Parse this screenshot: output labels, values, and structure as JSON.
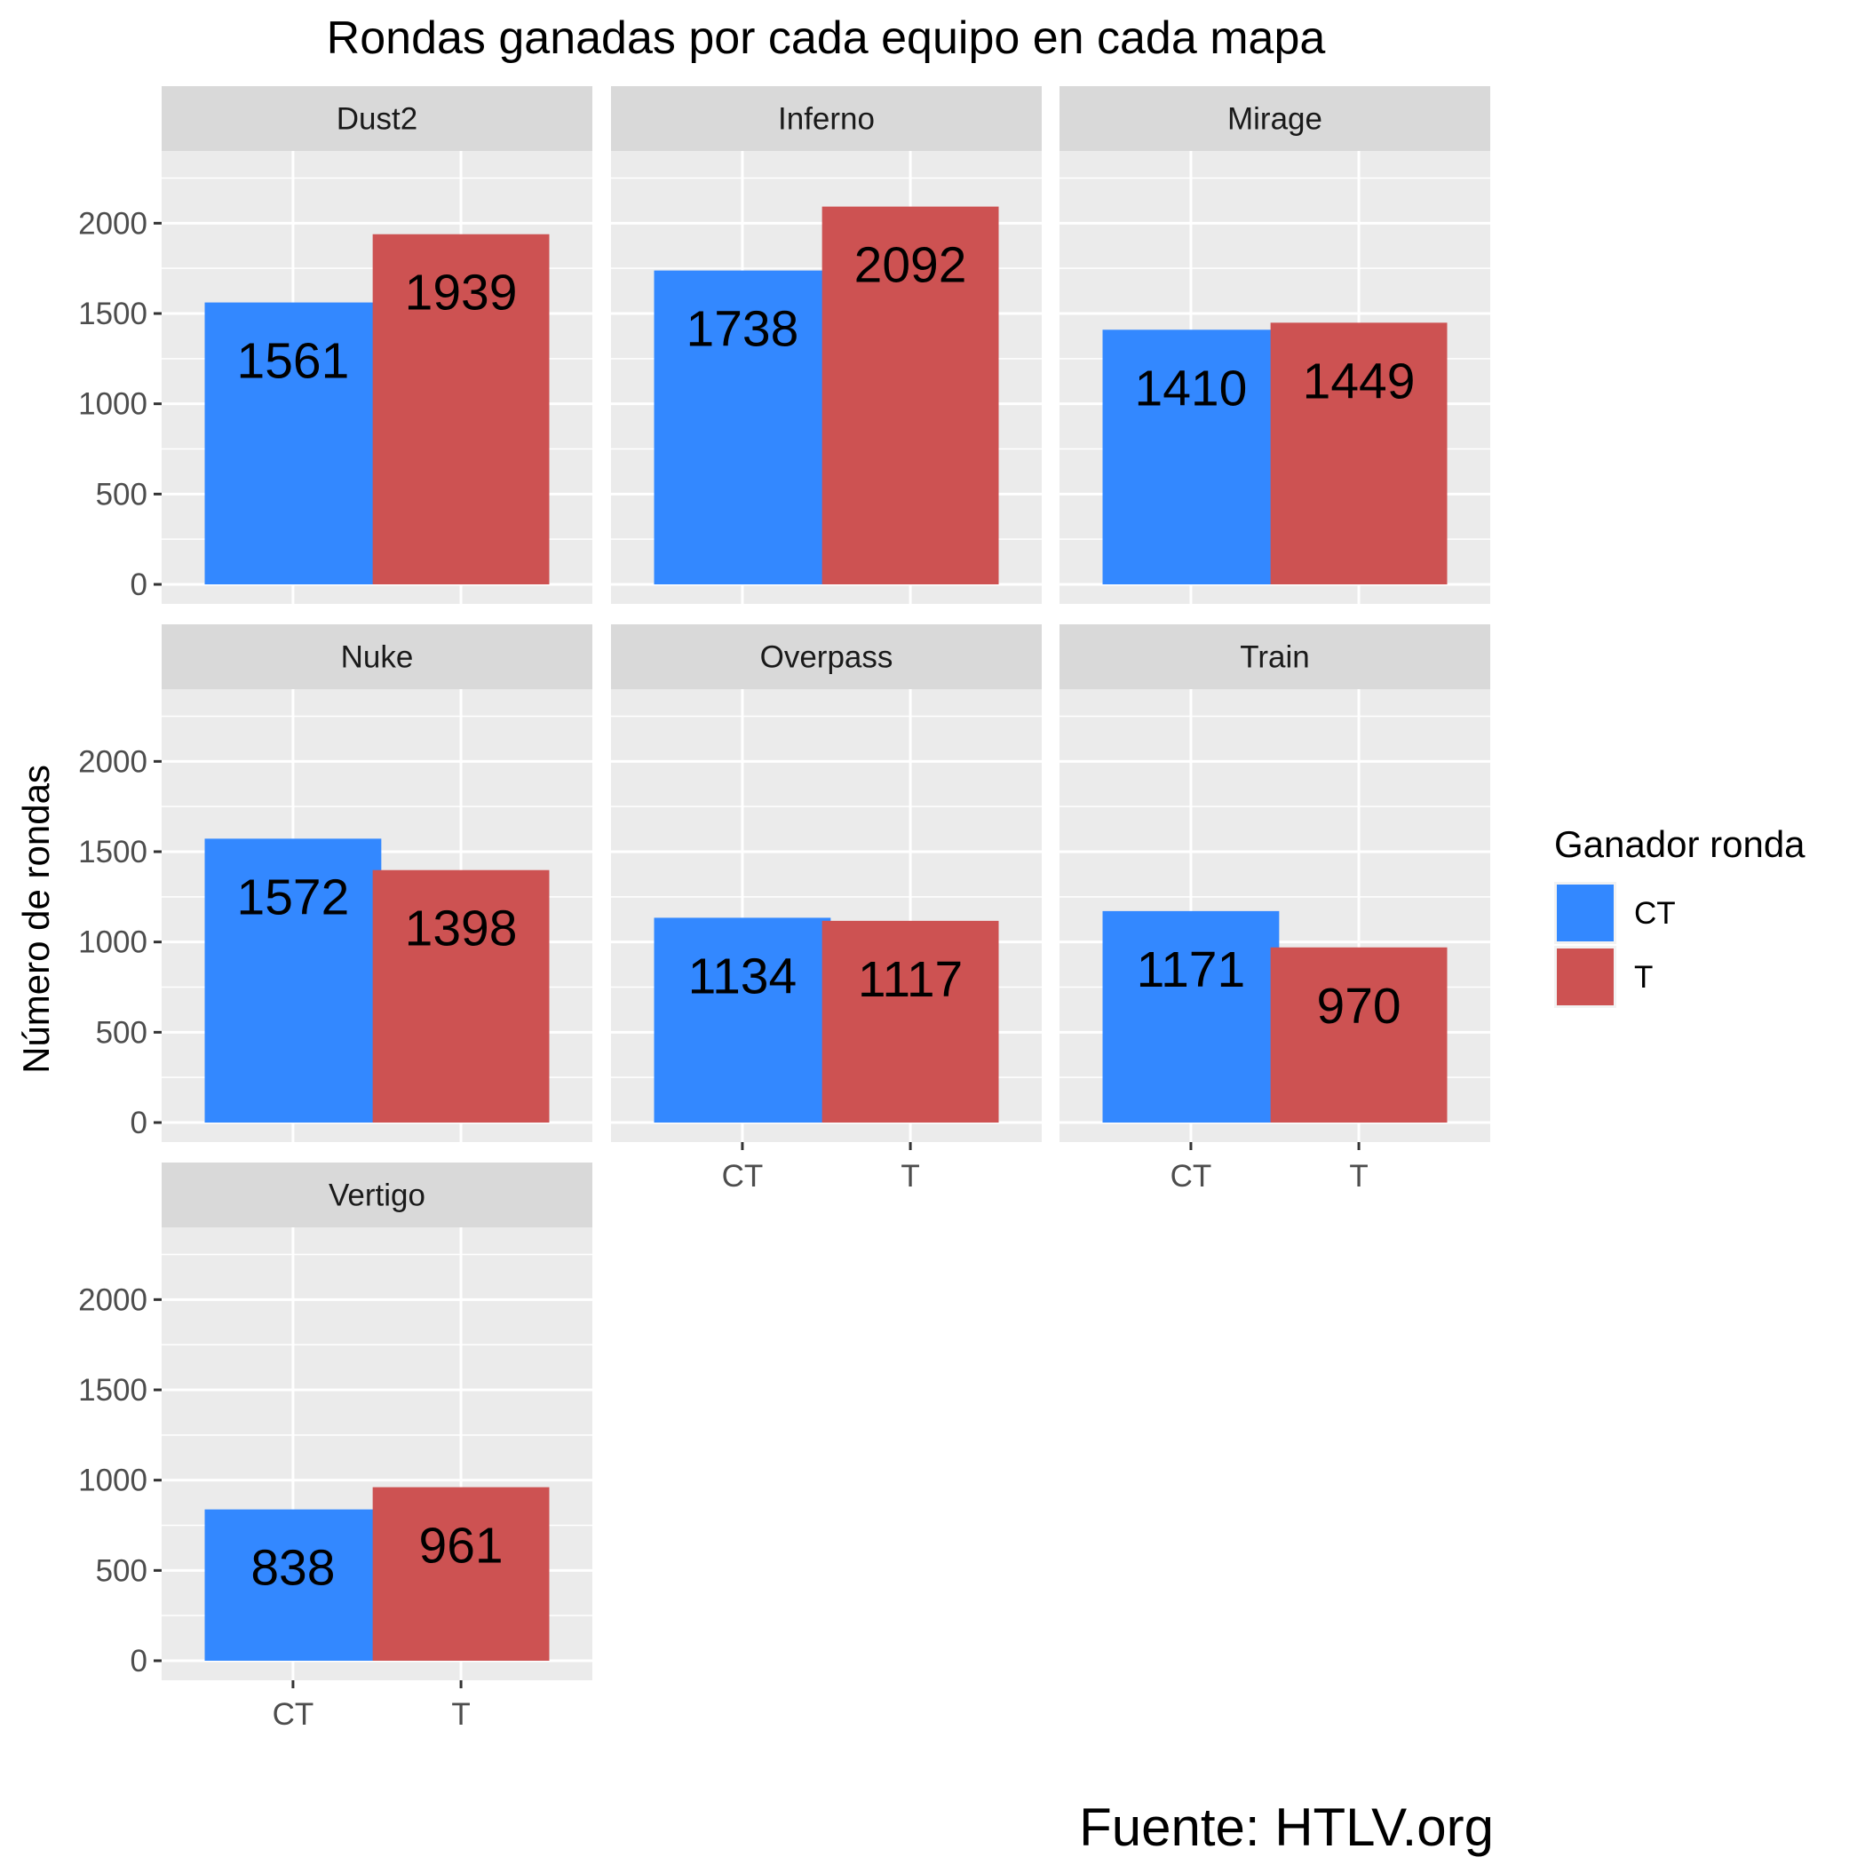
{
  "chart_data": {
    "type": "bar",
    "title": "Rondas ganadas por cada equipo en cada mapa",
    "ylabel": "Número de rondas",
    "xlabel": "",
    "categories": [
      "CT",
      "T"
    ],
    "ylim": [
      0,
      2400
    ],
    "yticks": [
      0,
      500,
      1000,
      1500,
      2000
    ],
    "grid": true,
    "legend": {
      "title": "Ganador ronda",
      "position": "right",
      "items": [
        {
          "label": "CT",
          "color": "#3388FF"
        },
        {
          "label": "T",
          "color": "#CD5252"
        }
      ]
    },
    "panels": [
      {
        "map": "Dust2",
        "values": [
          1561,
          1939
        ],
        "labels": [
          "1561",
          "1939"
        ]
      },
      {
        "map": "Inferno",
        "values": [
          1738,
          2092
        ],
        "labels": [
          "1738",
          "2092"
        ]
      },
      {
        "map": "Mirage",
        "values": [
          1410,
          1449
        ],
        "labels": [
          "1410",
          "1449"
        ]
      },
      {
        "map": "Nuke",
        "values": [
          1572,
          1398
        ],
        "labels": [
          "1572",
          "1398"
        ]
      },
      {
        "map": "Overpass",
        "values": [
          1134,
          1117
        ],
        "labels": [
          "1134",
          "1117"
        ]
      },
      {
        "map": "Train",
        "values": [
          1171,
          970
        ],
        "labels": [
          "1171",
          "970"
        ]
      },
      {
        "map": "Vertigo",
        "values": [
          838,
          961
        ],
        "labels": [
          "838",
          "961"
        ]
      }
    ],
    "caption": "Fuente: HTLV.org"
  },
  "colors": {
    "panel_bg": "#EBEBEB",
    "strip_bg": "#D9D9D9",
    "grid": "#FFFFFF",
    "tick": "#333333"
  }
}
